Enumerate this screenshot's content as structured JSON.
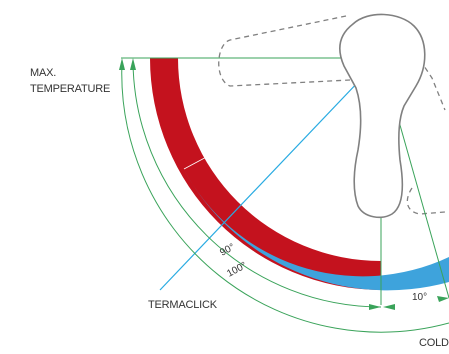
{
  "labels": {
    "max_temp_line1": "MAX.",
    "max_temp_line2": "TEMPERATURE",
    "termaclick": "TERMACLICK",
    "cold": "COLD",
    "angle_90": "90°",
    "angle_100": "100°",
    "angle_10": "10°"
  },
  "colors": {
    "hot": "#c4121e",
    "cool": "#3ea3dc",
    "construction": "#3aa35a",
    "termaclick_line": "#29abe2",
    "outline": "#808080",
    "text": "#333333"
  },
  "icons": [
    "mixer-handle-icon",
    "dashed-handle-outline-icon"
  ]
}
